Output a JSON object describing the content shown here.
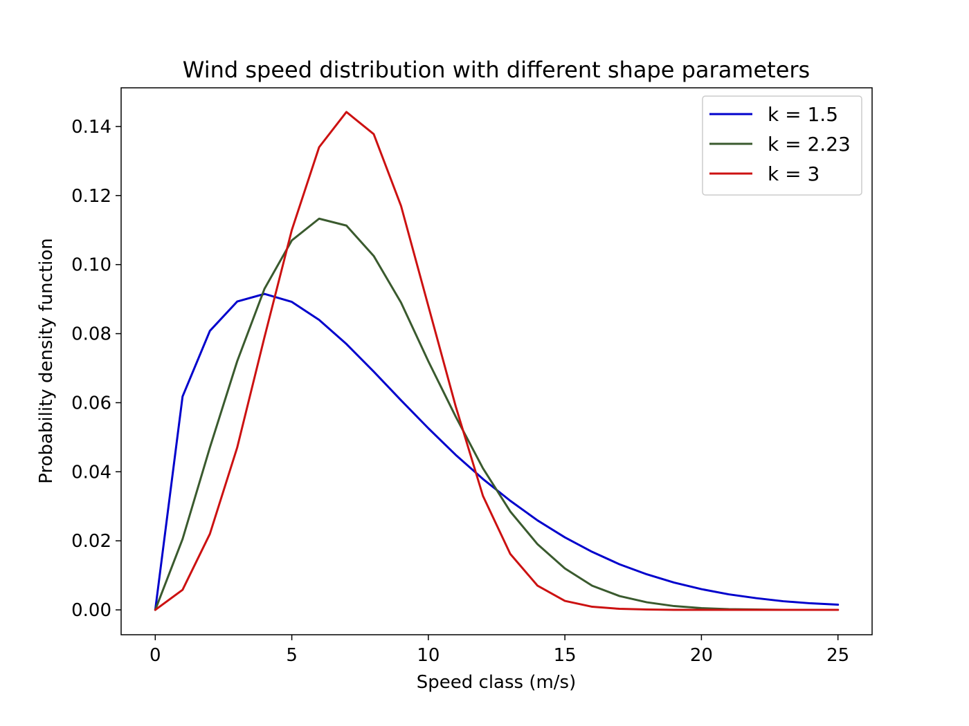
{
  "chart_data": {
    "type": "line",
    "title": "Wind speed distribution with different shape parameters",
    "xlabel": "Speed class (m/s)",
    "ylabel": "Probability density function",
    "xlim": [
      -1.25,
      26.25
    ],
    "ylim": [
      -0.0072,
      0.1512
    ],
    "xticks": [
      0,
      5,
      10,
      15,
      20,
      25
    ],
    "yticks": [
      0.0,
      0.02,
      0.04,
      0.06,
      0.08,
      0.1,
      0.12,
      0.14
    ],
    "ytick_labels": [
      "0.00",
      "0.02",
      "0.04",
      "0.06",
      "0.08",
      "0.10",
      "0.12",
      "0.14"
    ],
    "grid": false,
    "legend_position": "top-right",
    "x": [
      0,
      1,
      2,
      3,
      4,
      5,
      6,
      7,
      8,
      9,
      10,
      11,
      12,
      13,
      14,
      15,
      16,
      17,
      18,
      19,
      20,
      21,
      22,
      23,
      24,
      25
    ],
    "series": [
      {
        "name": "k = 1.5",
        "color": "#0000cc",
        "values": [
          0.0,
          0.0618,
          0.0808,
          0.0893,
          0.0915,
          0.0892,
          0.084,
          0.077,
          0.069,
          0.0607,
          0.0526,
          0.0449,
          0.0379,
          0.0316,
          0.0259,
          0.021,
          0.0168,
          0.0132,
          0.0103,
          0.0079,
          0.006,
          0.0045,
          0.0034,
          0.0025,
          0.0019,
          0.0015
        ]
      },
      {
        "name": "k = 2.23",
        "color": "#3a5a2e",
        "values": [
          0.0,
          0.0205,
          0.047,
          0.072,
          0.093,
          0.107,
          0.1133,
          0.1113,
          0.1025,
          0.089,
          0.072,
          0.056,
          0.041,
          0.0285,
          0.019,
          0.012,
          0.007,
          0.004,
          0.0022,
          0.0011,
          0.0005,
          0.0002,
          0.0001,
          0.0,
          0.0,
          0.0
        ]
      },
      {
        "name": "k = 3",
        "color": "#cc1111",
        "values": [
          0.0,
          0.0058,
          0.022,
          0.047,
          0.079,
          0.11,
          0.134,
          0.1442,
          0.1378,
          0.117,
          0.088,
          0.059,
          0.033,
          0.0162,
          0.007,
          0.0026,
          0.0009,
          0.0003,
          0.0001,
          0.0,
          0.0,
          0.0,
          0.0,
          0.0,
          0.0,
          0.0
        ]
      }
    ]
  }
}
